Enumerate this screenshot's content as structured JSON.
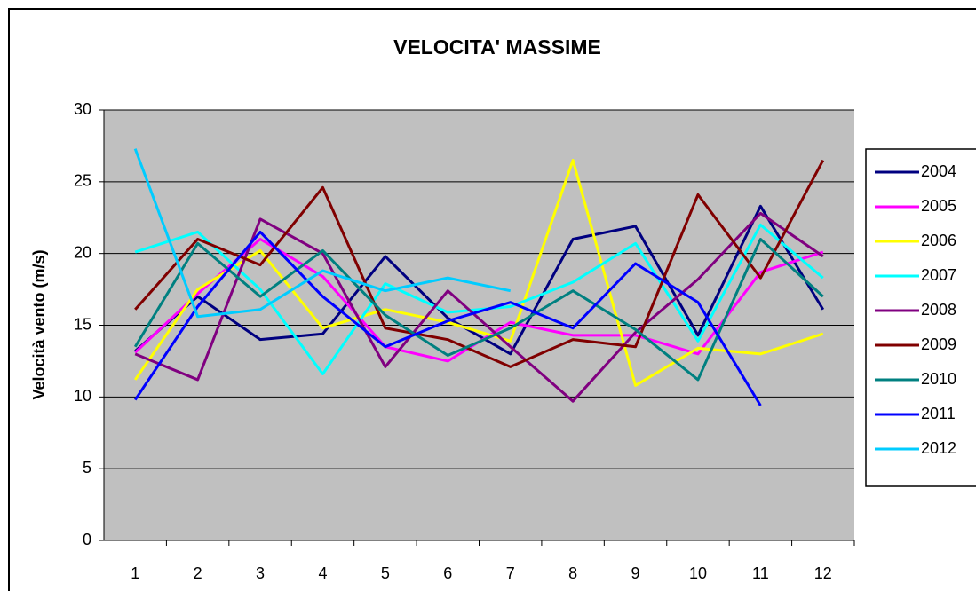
{
  "chart_data": {
    "type": "line",
    "title": "VELOCITA' MASSIME",
    "y_label": "Velocità vento (m/s)",
    "categories": [
      "1",
      "2",
      "3",
      "4",
      "5",
      "6",
      "7",
      "8",
      "9",
      "10",
      "11",
      "12"
    ],
    "ylim": [
      0,
      30
    ],
    "yticks": [
      0,
      5,
      10,
      15,
      20,
      25,
      30
    ],
    "grid": true,
    "legend": "right",
    "series": [
      {
        "name": "2004",
        "color": "#000080",
        "values": [
          13.2,
          17,
          14,
          14.4,
          19.8,
          15.5,
          13,
          21,
          21.9,
          14.3,
          23.3,
          16.1
        ]
      },
      {
        "name": "2005",
        "color": "#ff00ff",
        "values": [
          13.1,
          17.2,
          21,
          18.4,
          13.5,
          12.5,
          15.2,
          14.3,
          14.3,
          13,
          18.7,
          20.1
        ]
      },
      {
        "name": "2006",
        "color": "#ffff00",
        "values": [
          11.2,
          17.5,
          20.2,
          14.8,
          16.1,
          15.2,
          13.9,
          26.5,
          10.8,
          13.4,
          13,
          14.4
        ]
      },
      {
        "name": "2007",
        "color": "#00ffff",
        "values": [
          20.1,
          21.5,
          17.5,
          11.6,
          17.9,
          15.9,
          16.3,
          18,
          20.7,
          13.9,
          22,
          18.3
        ]
      },
      {
        "name": "2008",
        "color": "#800080",
        "values": [
          13,
          11.2,
          22.4,
          20,
          12.1,
          17.4,
          13.5,
          9.7,
          14.5,
          18.2,
          22.8,
          19.8
        ]
      },
      {
        "name": "2009",
        "color": "#800000",
        "values": [
          16.1,
          21,
          19.2,
          24.6,
          14.8,
          14,
          12.1,
          14,
          13.5,
          24.1,
          18.3,
          26.5
        ]
      },
      {
        "name": "2010",
        "color": "#008080",
        "values": [
          13.5,
          20.7,
          17,
          20.2,
          15.7,
          12.9,
          14.8,
          17.4,
          14.7,
          11.2,
          21,
          17
        ]
      },
      {
        "name": "2011",
        "color": "#0000ff",
        "values": [
          9.8,
          16.3,
          21.5,
          17,
          13.5,
          15.3,
          16.6,
          14.8,
          19.3,
          16.6,
          9.4,
          null
        ]
      },
      {
        "name": "2012",
        "color": "#00ccff",
        "values": [
          27.3,
          15.6,
          16.1,
          18.8,
          17.4,
          18.3,
          17.4,
          null,
          null,
          null,
          null,
          null
        ]
      }
    ]
  }
}
